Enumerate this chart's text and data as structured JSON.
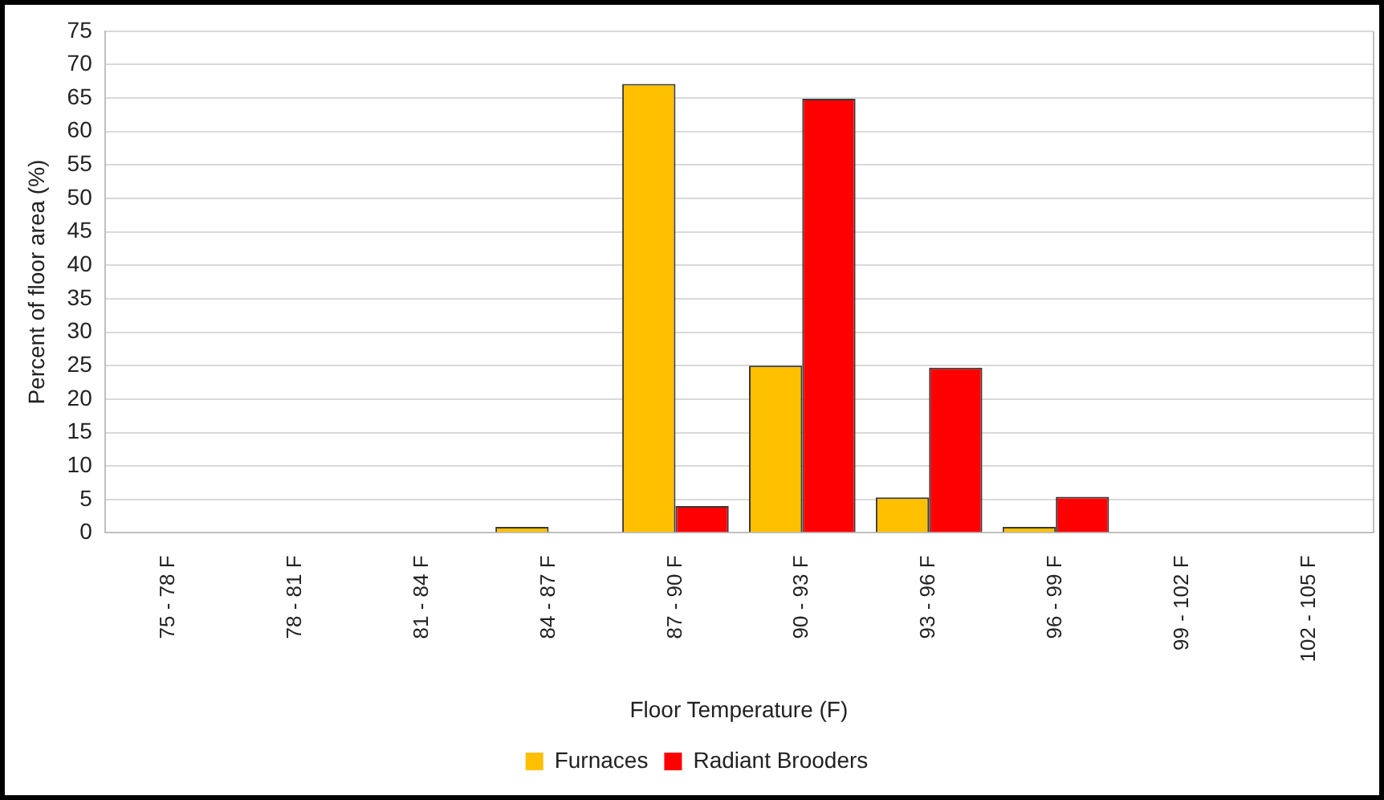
{
  "chart_data": {
    "type": "bar",
    "xlabel": "Floor Temperature (F)",
    "ylabel": "Percent of floor area (%)",
    "categories": [
      "75 - 78 F",
      "78 - 81 F",
      "81 - 84 F",
      "84 - 87 F",
      "87 - 90 F",
      "90 - 93 F",
      "93 - 96 F",
      "96 - 99 F",
      "99 - 102 F",
      "102 - 105 F"
    ],
    "series": [
      {
        "name": "Furnaces",
        "color": "#ffc000",
        "values": [
          0,
          0,
          0,
          0.9,
          67.1,
          25,
          5.3,
          0.9,
          0,
          0
        ]
      },
      {
        "name": "Radiant Brooders",
        "color": "#ff0000",
        "values": [
          0,
          0,
          0,
          0,
          4,
          64.9,
          24.7,
          5.4,
          0,
          0
        ]
      }
    ],
    "ylim": [
      0,
      75
    ],
    "yticks": [
      0,
      5,
      10,
      15,
      20,
      25,
      30,
      35,
      40,
      45,
      50,
      55,
      60,
      65,
      70,
      75
    ],
    "grid": "y",
    "legend": "bottom"
  }
}
